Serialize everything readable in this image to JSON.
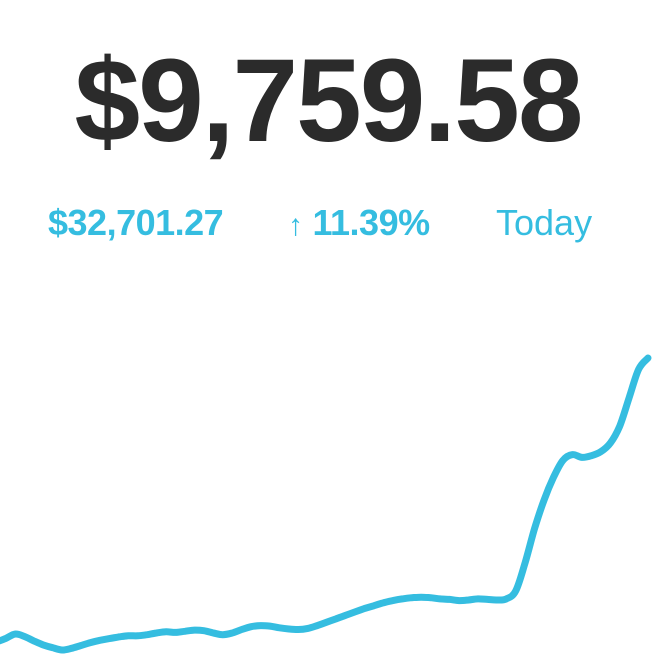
{
  "portfolio": {
    "balance": "$9,759.58",
    "change_amount": "$32,701.27",
    "change_arrow": "↑",
    "change_percent": "11.39%",
    "period_label": "Today"
  },
  "colors": {
    "balance_text": "#2b2b2b",
    "accent": "#35bde0",
    "background": "#ffffff"
  },
  "chart_data": {
    "type": "line",
    "title": "",
    "xlabel": "",
    "ylabel": "",
    "grid": false,
    "legend": "none",
    "series": [
      {
        "values": [
          10.0,
          10.6,
          11.4,
          11.0,
          10.2,
          9.5,
          9.0,
          8.6,
          8.9,
          9.4,
          9.9,
          10.3,
          10.6,
          10.9,
          11.1,
          11.1,
          11.3,
          11.6,
          11.8,
          11.7,
          11.9,
          12.1,
          12.0,
          11.6,
          11.3,
          11.6,
          12.2,
          12.7,
          12.9,
          12.8,
          12.5,
          12.3,
          12.2,
          12.4,
          12.9,
          13.5,
          14.1,
          14.7,
          15.3,
          15.9,
          16.4,
          16.9,
          17.3,
          17.6,
          17.8,
          17.9,
          17.8,
          17.6,
          17.5,
          17.3,
          17.4,
          17.6,
          17.5,
          17.4,
          17.6,
          19.0,
          24.0,
          30.0,
          35.0,
          39.0,
          42.0,
          43.0,
          42.5,
          42.8,
          43.5,
          45.0,
          48.0,
          53.0,
          58.0,
          60.0
        ]
      }
    ]
  }
}
